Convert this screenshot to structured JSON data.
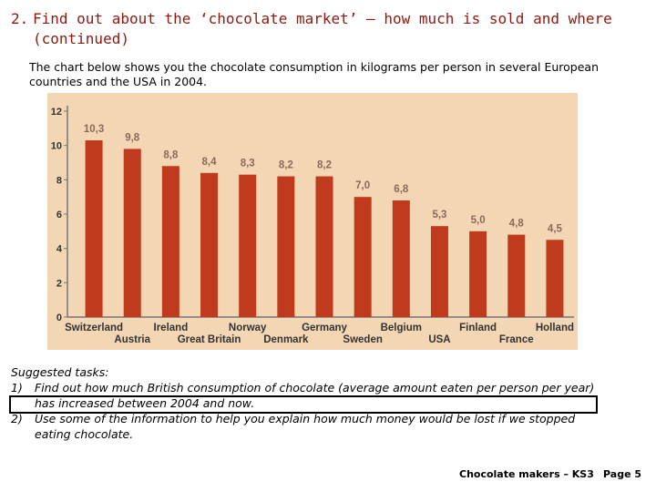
{
  "heading": {
    "number": "2.",
    "line1": "Find out about the ‘chocolate market’ – how much is sold and where",
    "line2": "(continued)"
  },
  "intro": "The chart below shows you the chocolate consumption in kilograms per person in several European countries and the USA in 2004.",
  "chart_data": {
    "type": "bar",
    "categories": [
      "Switzerland",
      "Austria",
      "Ireland",
      "Great Britain",
      "Norway",
      "Denmark",
      "Germany",
      "Sweden",
      "Belgium",
      "USA",
      "Finland",
      "France",
      "Holland"
    ],
    "values": [
      10.3,
      9.8,
      8.8,
      8.4,
      8.3,
      8.2,
      8.2,
      7.0,
      6.8,
      5.3,
      5.0,
      4.8,
      4.5
    ],
    "value_labels": [
      "10,3",
      "9,8",
      "8,8",
      "8,4",
      "8,3",
      "8,2",
      "8,2",
      "7,0",
      "6,8",
      "5,3",
      "5,0",
      "4,8",
      "4,5"
    ],
    "yticks": [
      "0",
      "2",
      "4",
      "6",
      "8",
      "10",
      "12"
    ],
    "ylim": [
      0,
      12
    ],
    "grid": false,
    "colors": {
      "bar": "#c03a1e",
      "background": "#f3d6b4",
      "axis": "#777777",
      "label": "#8a6a5a"
    }
  },
  "tasks": {
    "heading": "Suggested tasks:",
    "items": [
      {
        "n": "1)",
        "text": "Find out how much British consumption of chocolate (average amount eaten per person per year) has increased between 2004 and now."
      },
      {
        "n": "2)",
        "text": "Use some of the information to help you explain how much money would be lost if we stopped eating chocolate."
      }
    ]
  },
  "footer": {
    "left": "Chocolate makers – KS3",
    "right": "Page 5"
  }
}
